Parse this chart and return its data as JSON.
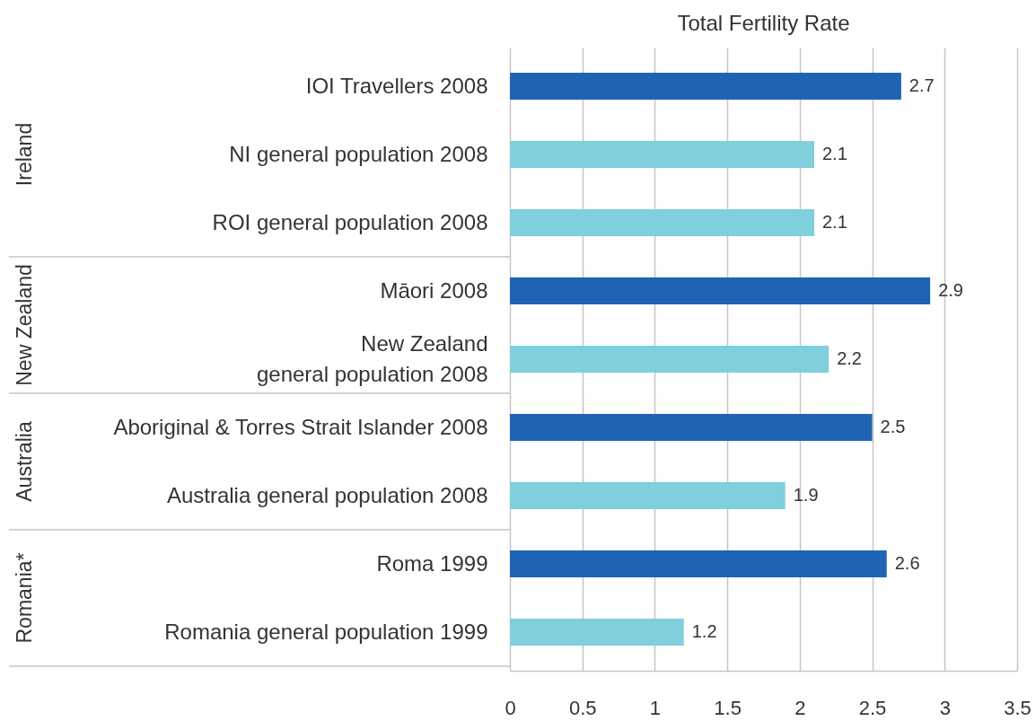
{
  "chart_data": {
    "type": "bar",
    "orientation": "horizontal",
    "title": "Total Fertility Rate",
    "categories": [
      "IOI Travellers 2008",
      "NI general population 2008",
      "ROI general population 2008",
      "Māori 2008",
      "New Zealand\ngeneral population 2008",
      "Aboriginal & Torres Strait Islander 2008",
      "Australia general population 2008",
      "Roma 1999",
      "Romania general population 1999"
    ],
    "values": [
      2.7,
      2.1,
      2.1,
      2.9,
      2.2,
      2.5,
      1.9,
      2.6,
      1.2
    ],
    "colors": [
      "#1f64b4",
      "#7fcfdc",
      "#7fcfdc",
      "#1f64b4",
      "#7fcfdc",
      "#1f64b4",
      "#7fcfdc",
      "#1f64b4",
      "#7fcfdc"
    ],
    "xlim": [
      0,
      3.5
    ],
    "xticks": [
      0,
      0.5,
      1,
      1.5,
      2,
      2.5,
      3,
      3.5
    ],
    "grid": "x",
    "data_labels": true,
    "annotations": [
      "Ireland",
      "New Zealand",
      "Australia",
      "Romania*"
    ]
  }
}
